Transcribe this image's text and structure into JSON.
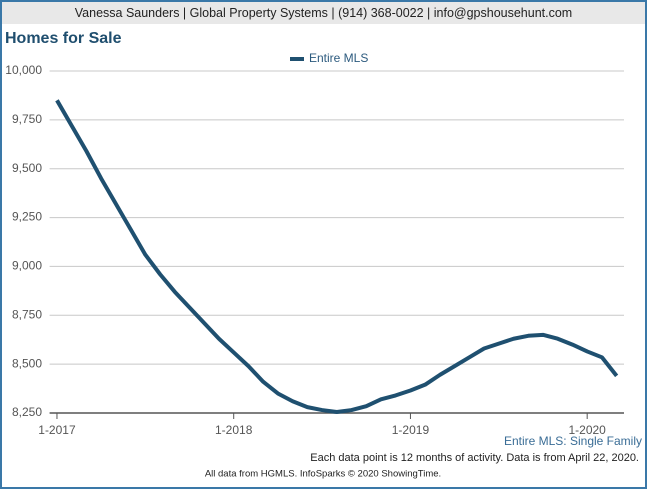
{
  "header": "Vanessa Saunders | Global Property Systems | (914) 368-0022 | info@gpshousehunt.com",
  "chart_data": {
    "type": "line",
    "title": "Homes for Sale",
    "x": [
      0,
      1,
      2,
      3,
      4,
      5,
      6,
      7,
      8,
      9,
      10,
      11,
      12,
      13,
      14,
      15,
      16,
      17,
      18,
      19,
      20,
      21,
      22,
      23,
      24,
      25,
      26,
      27,
      28,
      29,
      30,
      31,
      32,
      33,
      34,
      35,
      36,
      37,
      38
    ],
    "series": [
      {
        "name": "Entire MLS",
        "color": "#1f5070",
        "values": [
          9850,
          9720,
          9590,
          9450,
          9320,
          9190,
          9060,
          8960,
          8870,
          8790,
          8710,
          8630,
          8560,
          8490,
          8410,
          8350,
          8310,
          8280,
          8265,
          8255,
          8265,
          8285,
          8320,
          8340,
          8365,
          8395,
          8445,
          8490,
          8535,
          8580,
          8605,
          8630,
          8645,
          8650,
          8630,
          8600,
          8565,
          8535,
          8440
        ]
      }
    ],
    "xlim": [
      -0.5,
      38.5
    ],
    "xticks": [
      {
        "value": 0,
        "label": "1-2017"
      },
      {
        "value": 12,
        "label": "1-2018"
      },
      {
        "value": 24,
        "label": "1-2019"
      },
      {
        "value": 36,
        "label": "1-2020"
      }
    ],
    "ylim": [
      8250,
      10000
    ],
    "yticks": [
      {
        "value": 8250,
        "label": "8,250"
      },
      {
        "value": 8500,
        "label": "8,500"
      },
      {
        "value": 8750,
        "label": "8,750"
      },
      {
        "value": 9000,
        "label": "9,000"
      },
      {
        "value": 9250,
        "label": "9,250"
      },
      {
        "value": 9500,
        "label": "9,500"
      },
      {
        "value": 9750,
        "label": "9,750"
      },
      {
        "value": 10000,
        "label": "10,000"
      }
    ],
    "grid": true,
    "legend": "top",
    "annotations": [
      "Entire MLS: Single Family",
      "Each data point is 12 months of activity. Data is from April 22, 2020.",
      "All data from HGMLS. InfoSparks © 2020 ShowingTime."
    ]
  }
}
